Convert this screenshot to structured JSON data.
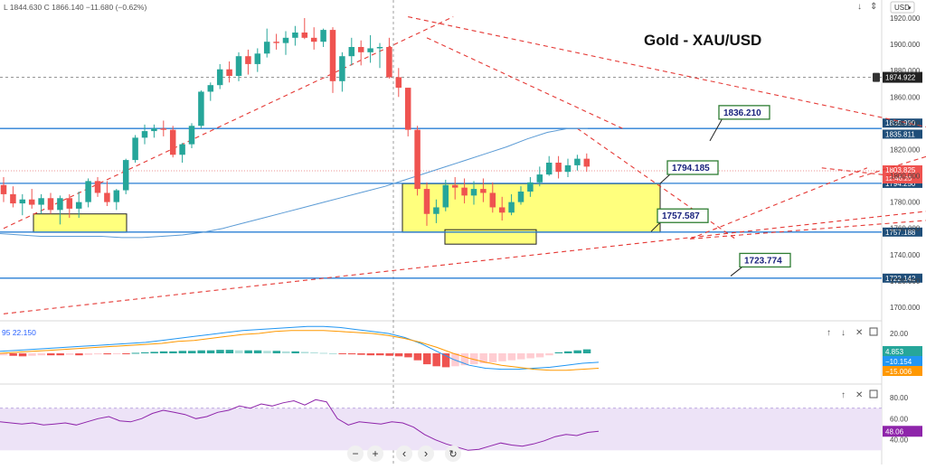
{
  "header": {
    "ohlc": "L 1844.630  C 1866.140  −11.680 (−0.62%)",
    "currency": "USD"
  },
  "chart_data": [
    {
      "type": "candlestick",
      "title": "Gold - XAU/USD",
      "ylim": [
        1690,
        1925
      ],
      "y_ticks": [
        1700,
        1720,
        1740,
        1760,
        1780,
        1800,
        1820,
        1840,
        1860,
        1880,
        1900,
        1920
      ],
      "candles": [
        [
          1793,
          1799,
          1780,
          1786
        ],
        [
          1786,
          1792,
          1776,
          1779
        ],
        [
          1779,
          1786,
          1770,
          1782
        ],
        [
          1782,
          1790,
          1775,
          1778
        ],
        [
          1778,
          1786,
          1771,
          1783
        ],
        [
          1783,
          1787,
          1771,
          1774
        ],
        [
          1774,
          1785,
          1763,
          1783
        ],
        [
          1783,
          1786,
          1768,
          1775
        ],
        [
          1775,
          1788,
          1768,
          1780
        ],
        [
          1780,
          1798,
          1776,
          1796
        ],
        [
          1796,
          1799,
          1784,
          1787
        ],
        [
          1787,
          1796,
          1777,
          1780
        ],
        [
          1780,
          1790,
          1774,
          1789
        ],
        [
          1789,
          1813,
          1786,
          1812
        ],
        [
          1812,
          1831,
          1810,
          1829
        ],
        [
          1829,
          1839,
          1824,
          1834
        ],
        [
          1834,
          1839,
          1829,
          1836
        ],
        [
          1836,
          1842,
          1830,
          1835
        ],
        [
          1835,
          1838,
          1814,
          1816
        ],
        [
          1816,
          1825,
          1810,
          1824
        ],
        [
          1824,
          1840,
          1821,
          1838
        ],
        [
          1838,
          1865,
          1836,
          1864
        ],
        [
          1864,
          1871,
          1857,
          1869
        ],
        [
          1869,
          1885,
          1866,
          1881
        ],
        [
          1881,
          1887,
          1871,
          1876
        ],
        [
          1876,
          1894,
          1872,
          1891
        ],
        [
          1891,
          1896,
          1877,
          1885
        ],
        [
          1885,
          1897,
          1879,
          1893
        ],
        [
          1893,
          1912,
          1890,
          1902
        ],
        [
          1902,
          1908,
          1896,
          1901
        ],
        [
          1901,
          1910,
          1892,
          1905
        ],
        [
          1905,
          1914,
          1899,
          1909
        ],
        [
          1909,
          1920,
          1904,
          1905
        ],
        [
          1905,
          1913,
          1896,
          1902
        ],
        [
          1902,
          1912,
          1898,
          1911
        ],
        [
          1911,
          1913,
          1863,
          1872
        ],
        [
          1872,
          1894,
          1864,
          1891
        ],
        [
          1891,
          1905,
          1884,
          1898
        ],
        [
          1898,
          1903,
          1884,
          1894
        ],
        [
          1894,
          1907,
          1886,
          1897
        ],
        [
          1897,
          1901,
          1882,
          1898
        ],
        [
          1898,
          1905,
          1874,
          1875
        ],
        [
          1875,
          1882,
          1860,
          1867
        ],
        [
          1867,
          1867,
          1830,
          1835
        ],
        [
          1835,
          1838,
          1785,
          1790
        ],
        [
          1790,
          1795,
          1762,
          1771
        ],
        [
          1771,
          1782,
          1764,
          1776
        ],
        [
          1776,
          1797,
          1773,
          1793
        ],
        [
          1793,
          1799,
          1782,
          1791
        ],
        [
          1791,
          1798,
          1779,
          1785
        ],
        [
          1785,
          1796,
          1778,
          1790
        ],
        [
          1790,
          1798,
          1780,
          1787
        ],
        [
          1787,
          1795,
          1772,
          1776
        ],
        [
          1776,
          1784,
          1766,
          1772
        ],
        [
          1772,
          1786,
          1770,
          1780
        ],
        [
          1780,
          1792,
          1778,
          1788
        ],
        [
          1788,
          1799,
          1784,
          1795
        ],
        [
          1795,
          1807,
          1792,
          1801
        ],
        [
          1801,
          1815,
          1800,
          1810
        ],
        [
          1810,
          1815,
          1798,
          1803
        ],
        [
          1803,
          1813,
          1799,
          1808
        ],
        [
          1808,
          1816,
          1804,
          1813
        ],
        [
          1813,
          1817,
          1803,
          1807
        ]
      ],
      "ma": [
        1756,
        1755,
        1754,
        1754,
        1754,
        1754,
        1753,
        1753,
        1754,
        1755,
        1757,
        1760,
        1764,
        1768,
        1772,
        1776,
        1780,
        1784,
        1788,
        1792,
        1797,
        1802,
        1807,
        1812,
        1817,
        1822,
        1828,
        1833,
        1836,
        1836
      ],
      "horizontal_levels": [
        {
          "price": 1835.99,
          "tag": "1835.990"
        },
        {
          "price": 1835.811,
          "tag": "1835.811"
        },
        {
          "price": 1794.25,
          "tag": "1794.250"
        },
        {
          "price": 1757.188,
          "tag": "1757.188"
        },
        {
          "price": 1722.142,
          "tag": "1722.142"
        }
      ],
      "last_price": {
        "price": 1803.825,
        "tag": "1803.825",
        "countdown": "12:46:25"
      },
      "crosshair": {
        "price": 1874.922,
        "tag": "1874.922"
      },
      "callouts": [
        {
          "price": 1836.21,
          "text": "1836.210"
        },
        {
          "price": 1794.185,
          "text": "1794.185"
        },
        {
          "price": 1757.587,
          "text": "1757.587"
        },
        {
          "price": 1723.774,
          "text": "1723.774"
        }
      ],
      "zones": [
        {
          "price_top": 1794,
          "price_bottom": 1757
        },
        {
          "price_top": 1771,
          "price_bottom": 1757
        },
        {
          "price_top": 1759,
          "price_bottom": 1748
        }
      ],
      "trend_lines": [
        {
          "from": [
            0,
            1760
          ],
          "to": [
            43,
            1921
          ]
        },
        {
          "from": [
            43,
            1921
          ],
          "to": [
            121,
            1795
          ]
        },
        {
          "from": [
            45,
            1905
          ],
          "to": [
            61,
            1836
          ]
        },
        {
          "from": [
            61,
            1836
          ],
          "to": [
            73,
            1752
          ]
        },
        {
          "from": [
            73,
            1752
          ],
          "to": [
            87,
            1806
          ]
        },
        {
          "from": [
            87,
            1806
          ],
          "to": [
            91,
            1799
          ]
        },
        {
          "from": [
            91,
            1799
          ],
          "to": [
            103,
            1836
          ]
        },
        {
          "from": [
            73,
            1752
          ],
          "to": [
            95,
            1767
          ]
        },
        {
          "from": [
            0,
            1695
          ],
          "to": [
            121,
            1795
          ]
        }
      ]
    },
    {
      "type": "macd",
      "label": "95  22.150",
      "y_ticks": [
        20
      ],
      "histogram": [
        -2,
        -2.5,
        -3,
        -2.5,
        -2,
        -2,
        -2,
        -1.5,
        -2,
        -1.5,
        -1,
        -1,
        -0.5,
        -0.5,
        0.5,
        1,
        1.5,
        2,
        2,
        2.5,
        2.5,
        3,
        3,
        3.5,
        3.5,
        3,
        3,
        3,
        2.5,
        2.5,
        2,
        2,
        1.5,
        1,
        0.5,
        0,
        -0.5,
        -1,
        -1.5,
        -2,
        -2,
        -2.5,
        -3,
        -4,
        -7,
        -11,
        -13,
        -14,
        -13,
        -12,
        -11,
        -10,
        -9,
        -8,
        -7,
        -6,
        -5,
        -4,
        -2,
        1,
        2,
        3,
        4
      ],
      "macd_line": [
        2,
        3,
        4,
        5,
        6,
        7,
        8,
        9,
        10,
        11,
        13,
        15,
        17,
        19,
        21,
        23,
        24,
        25,
        26,
        27,
        27,
        26,
        24,
        22,
        20,
        16,
        10,
        2,
        -6,
        -12,
        -15,
        -16,
        -16,
        -15,
        -14,
        -12,
        -10,
        -9
      ],
      "signal_line": [
        0,
        1,
        2,
        3,
        4,
        5,
        6,
        7,
        8,
        9,
        10,
        12,
        13,
        15,
        17,
        19,
        20,
        22,
        23,
        23,
        23,
        22,
        21,
        20,
        18,
        15,
        11,
        6,
        0,
        -5,
        -9,
        -12,
        -14,
        -16,
        -17,
        -17,
        -16,
        -15
      ],
      "tags": [
        {
          "value": 4.853,
          "text": "4.853"
        },
        {
          "value": -10.154,
          "text": "−10.154"
        },
        {
          "value": -15.006,
          "text": "−15.006"
        }
      ]
    },
    {
      "type": "rsi",
      "y_ticks": [
        40,
        60,
        80
      ],
      "band": [
        30,
        70
      ],
      "values": [
        57,
        56,
        55,
        56,
        54,
        55,
        56,
        54,
        57,
        60,
        62,
        58,
        57,
        60,
        65,
        68,
        66,
        64,
        60,
        62,
        66,
        68,
        72,
        70,
        74,
        72,
        75,
        77,
        73,
        78,
        76,
        60,
        54,
        57,
        56,
        55,
        57,
        56,
        52,
        45,
        40,
        36,
        33,
        30,
        31,
        34,
        37,
        35,
        34,
        36,
        39,
        43,
        45,
        44,
        47,
        48
      ],
      "tag": {
        "value": 48.06,
        "text": "48.06"
      }
    }
  ],
  "toolbar": {
    "minus": "−",
    "plus": "+",
    "left": "‹",
    "right": "›",
    "reset": "↻"
  }
}
